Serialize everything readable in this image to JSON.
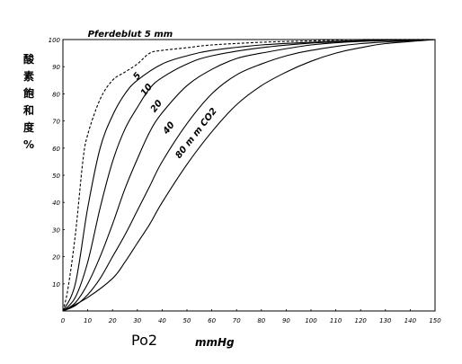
{
  "chart_data": {
    "type": "line",
    "ylabel_chars": [
      "酸",
      "素",
      "飽",
      "和",
      "度",
      "%"
    ],
    "xlabel": "Po2",
    "xlabel_unit": "mmHg",
    "xlim": [
      0,
      150
    ],
    "ylim": [
      0,
      100
    ],
    "x_ticks": [
      "0",
      "10",
      "20",
      "30",
      "40",
      "50",
      "60",
      "70",
      "80",
      "90",
      "100",
      "110",
      "120",
      "130",
      "140",
      "150"
    ],
    "y_ticks": [
      "10",
      "20",
      "30",
      "40",
      "50",
      "60",
      "70",
      "80",
      "90",
      "100"
    ],
    "grid": false,
    "series": [
      {
        "name": "Pferdeblut 5 mm",
        "style": "dashed",
        "label_pos": [
          10,
          101
        ],
        "x": [
          0,
          2,
          5,
          8,
          10,
          15,
          20,
          25,
          30,
          35,
          40,
          50,
          60,
          80,
          100,
          120,
          150
        ],
        "y": [
          0,
          8,
          28,
          55,
          65,
          78,
          85,
          88,
          91,
          95,
          96,
          97,
          98,
          99,
          99.5,
          100,
          100
        ]
      },
      {
        "name": "5",
        "style": "solid",
        "label_pos": [
          30,
          85
        ],
        "x": [
          0,
          5,
          10,
          15,
          20,
          25,
          30,
          40,
          50,
          60,
          80,
          100,
          120,
          150
        ],
        "y": [
          0,
          10,
          38,
          60,
          72,
          80,
          85,
          91,
          94,
          96,
          98,
          99,
          99.6,
          100
        ]
      },
      {
        "name": "10",
        "style": "solid",
        "label_pos": [
          33,
          79
        ],
        "x": [
          0,
          5,
          10,
          15,
          20,
          25,
          30,
          35,
          40,
          50,
          60,
          80,
          100,
          120,
          150
        ],
        "y": [
          0,
          5,
          18,
          38,
          55,
          67,
          75,
          82,
          86,
          91,
          94,
          97,
          98.7,
          99.5,
          100
        ]
      },
      {
        "name": "20",
        "style": "solid",
        "label_pos": [
          37,
          73
        ],
        "x": [
          0,
          5,
          10,
          15,
          20,
          25,
          30,
          35,
          40,
          50,
          60,
          70,
          80,
          100,
          120,
          150
        ],
        "y": [
          0,
          3,
          10,
          20,
          32,
          45,
          56,
          66,
          73,
          83,
          89,
          93,
          95,
          98,
          99.3,
          100
        ]
      },
      {
        "name": "40",
        "style": "solid",
        "label_pos": [
          42,
          65
        ],
        "x": [
          0,
          5,
          10,
          15,
          20,
          25,
          30,
          35,
          40,
          50,
          60,
          70,
          80,
          90,
          100,
          120,
          150
        ],
        "y": [
          0,
          2,
          6,
          12,
          20,
          28,
          37,
          46,
          55,
          69,
          80,
          87,
          91,
          94,
          96,
          98.5,
          100
        ]
      },
      {
        "name": "80 m m CO2",
        "style": "solid",
        "label_pos": [
          47,
          56
        ],
        "x": [
          0,
          10,
          20,
          25,
          30,
          35,
          40,
          50,
          60,
          70,
          80,
          90,
          100,
          110,
          120,
          130,
          150
        ],
        "y": [
          0,
          5,
          12,
          18,
          25,
          32,
          40,
          54,
          66,
          76,
          83,
          88,
          92,
          95,
          97,
          98.5,
          100
        ]
      }
    ]
  }
}
